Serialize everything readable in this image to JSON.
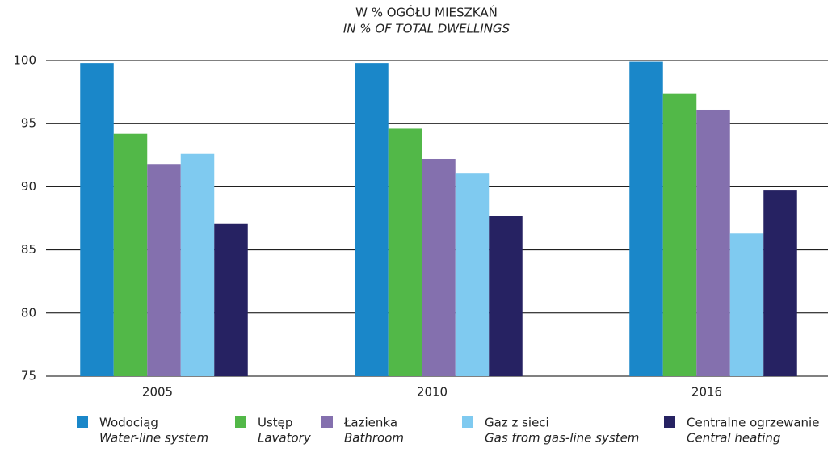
{
  "chart_data": {
    "type": "bar",
    "title": "W % OGÓŁU MIESZKAŃ",
    "subtitle": "IN % OF TOTAL DWELLINGS",
    "categories": [
      "2005",
      "2010",
      "2016"
    ],
    "series": [
      {
        "name": "Wodociąg",
        "name_en": "Water-line system",
        "color": "#1a87c9",
        "values": [
          99.8,
          99.8,
          99.9
        ]
      },
      {
        "name": "Ustęp",
        "name_en": "Lavatory",
        "color": "#52b848",
        "values": [
          94.2,
          94.6,
          97.4
        ]
      },
      {
        "name": "Łazienka",
        "name_en": "Bathroom",
        "color": "#8470ae",
        "values": [
          91.8,
          92.2,
          96.1
        ]
      },
      {
        "name": "Gaz z sieci",
        "name_en": "Gas from gas-line system",
        "color": "#7fcaf0",
        "values": [
          92.6,
          91.1,
          86.3
        ]
      },
      {
        "name": "Centralne ogrzewanie",
        "name_en": "Central heating",
        "color": "#262262",
        "values": [
          87.1,
          87.7,
          89.7
        ]
      }
    ],
    "ylim": [
      75,
      100
    ],
    "yticks": [
      75,
      80,
      85,
      90,
      95,
      100
    ],
    "grid": true,
    "legend": "bottom"
  }
}
